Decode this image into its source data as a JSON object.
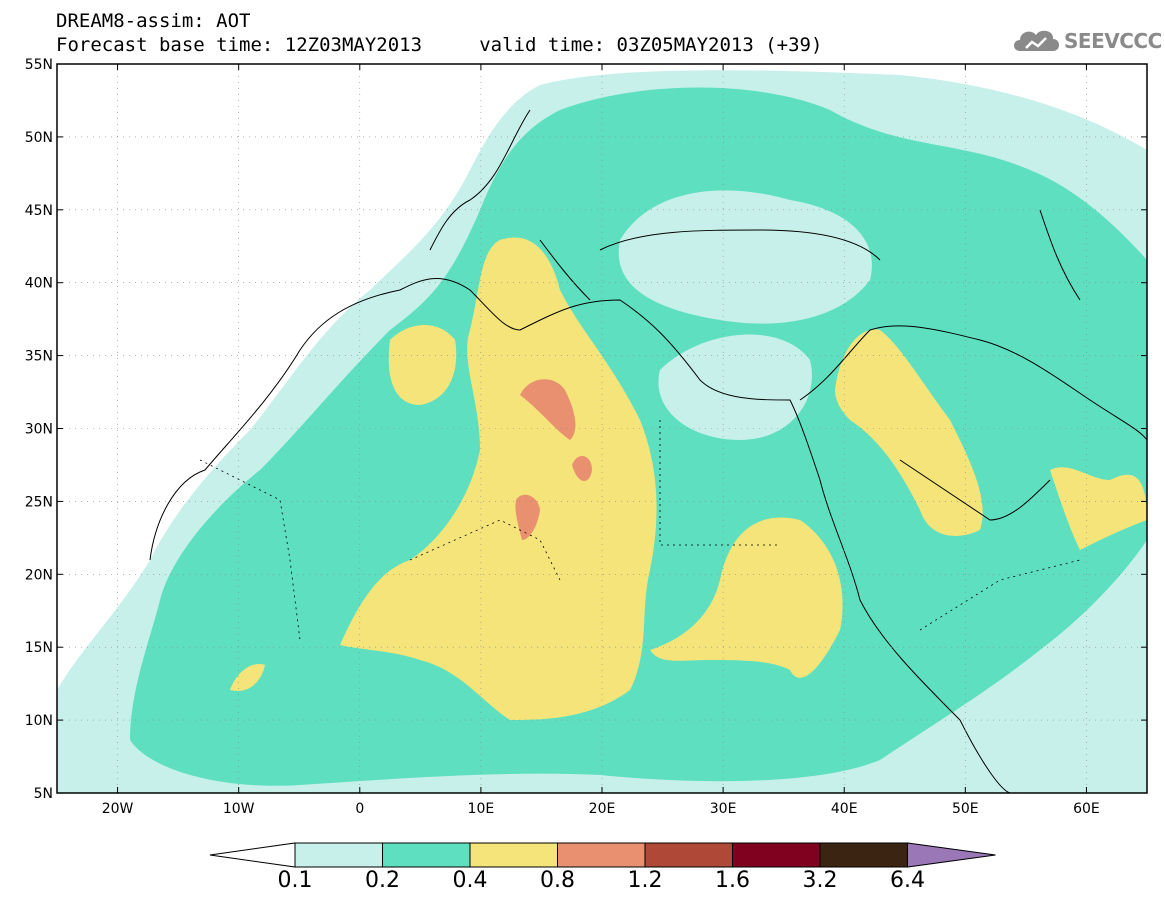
{
  "header": {
    "title_line1": "DREAM8-assim: AOT",
    "title_line2": "Forecast base time: 12Z03MAY2013     valid time: 03Z05MAY2013 (+39)",
    "logo_text": "SEEVCCC",
    "logo_icon": "cloud-icon"
  },
  "map": {
    "lon_range": [
      -25,
      65
    ],
    "lat_range": [
      5,
      55
    ],
    "lon_ticks": [
      {
        "value": -20,
        "label": "20W"
      },
      {
        "value": -10,
        "label": "10W"
      },
      {
        "value": 0,
        "label": "0"
      },
      {
        "value": 10,
        "label": "10E"
      },
      {
        "value": 20,
        "label": "20E"
      },
      {
        "value": 30,
        "label": "30E"
      },
      {
        "value": 40,
        "label": "40E"
      },
      {
        "value": 50,
        "label": "50E"
      },
      {
        "value": 60,
        "label": "60E"
      }
    ],
    "lat_ticks": [
      {
        "value": 5,
        "label": "5N"
      },
      {
        "value": 10,
        "label": "10N"
      },
      {
        "value": 15,
        "label": "15N"
      },
      {
        "value": 20,
        "label": "20N"
      },
      {
        "value": 25,
        "label": "25N"
      },
      {
        "value": 30,
        "label": "30N"
      },
      {
        "value": 35,
        "label": "35N"
      },
      {
        "value": 40,
        "label": "40N"
      },
      {
        "value": 45,
        "label": "45N"
      },
      {
        "value": 50,
        "label": "50N"
      },
      {
        "value": 55,
        "label": "55N"
      }
    ],
    "grid": true
  },
  "colorbar": {
    "levels": [
      "0.1",
      "0.2",
      "0.4",
      "0.8",
      "1.2",
      "1.6",
      "3.2",
      "6.4"
    ],
    "colors": [
      "#c8f0ea",
      "#5ee0c0",
      "#f4e47a",
      "#e89070",
      "#b04838",
      "#800020",
      "#3c2412",
      "#9a78b8"
    ],
    "under_color": "#ffffff"
  }
}
